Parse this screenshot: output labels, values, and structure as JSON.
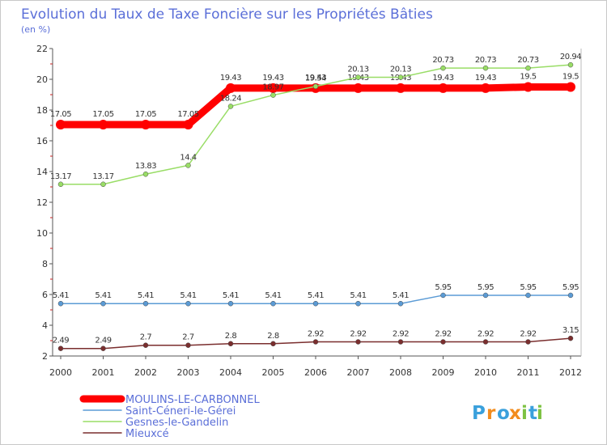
{
  "chart_data": {
    "type": "line",
    "title": "Evolution du Taux de Taxe Foncière sur les Propriétés Bâties",
    "subtitle": "(en %)",
    "xlabel": "",
    "ylabel": "",
    "x": [
      "2000",
      "2001",
      "2002",
      "2003",
      "2004",
      "2005",
      "2006",
      "2007",
      "2008",
      "2009",
      "2010",
      "2011",
      "2012"
    ],
    "ylim": [
      2,
      22
    ],
    "yticks": [
      2,
      4,
      6,
      8,
      10,
      12,
      14,
      16,
      18,
      20,
      22
    ],
    "grid": false,
    "legend_position": "bottom-left",
    "series": [
      {
        "name": "MOULINS-LE-CARBONNEL",
        "color": "#ff0000",
        "values": [
          17.05,
          17.05,
          17.05,
          17.05,
          19.43,
          19.43,
          19.43,
          19.43,
          19.43,
          19.43,
          19.43,
          19.5,
          19.5
        ],
        "labels": [
          "17.05",
          "17.05",
          "17.05",
          "17.05",
          "19.43",
          "19.43",
          "19.43",
          "19.43",
          "19.43",
          "19.43",
          "19.43",
          "19.5",
          "19.5"
        ]
      },
      {
        "name": "Saint-Céneri-le-Gérei",
        "color": "#5b9bd5",
        "values": [
          5.41,
          5.41,
          5.41,
          5.41,
          5.41,
          5.41,
          5.41,
          5.41,
          5.41,
          5.95,
          5.95,
          5.95,
          5.95
        ],
        "labels": [
          "5.41",
          "5.41",
          "5.41",
          "5.41",
          "5.41",
          "5.41",
          "5.41",
          "5.41",
          "5.41",
          "5.95",
          "5.95",
          "5.95",
          "5.95"
        ]
      },
      {
        "name": "Gesnes-le-Gandelin",
        "color": "#99dd66",
        "values": [
          13.17,
          13.17,
          13.83,
          14.4,
          18.24,
          18.97,
          19.54,
          20.13,
          20.13,
          20.73,
          20.73,
          20.73,
          20.94
        ],
        "labels": [
          "13.17",
          "13.17",
          "13.83",
          "14.4",
          "18.24",
          "18.97",
          "19.54",
          "20.13",
          "20.13",
          "20.73",
          "20.73",
          "20.73",
          "20.94"
        ]
      },
      {
        "name": "Mieuxcé",
        "color": "#7a2e2e",
        "values": [
          2.49,
          2.49,
          2.7,
          2.7,
          2.8,
          2.8,
          2.92,
          2.92,
          2.92,
          2.92,
          2.92,
          2.92,
          3.15
        ],
        "labels": [
          "2.49",
          "2.49",
          "2.7",
          "2.7",
          "2.8",
          "2.8",
          "2.92",
          "2.92",
          "2.92",
          "2.92",
          "2.92",
          "2.92",
          "3.15"
        ]
      }
    ]
  },
  "logo": {
    "text": "Proxiti",
    "letters": [
      "P",
      "r",
      "o",
      "x",
      "i",
      "t",
      "i"
    ],
    "colors": [
      "#3aa0dc",
      "#f28c1e",
      "#3aa0dc",
      "#f28c1e",
      "#7dc242",
      "#3aa0dc",
      "#7dc242"
    ]
  }
}
